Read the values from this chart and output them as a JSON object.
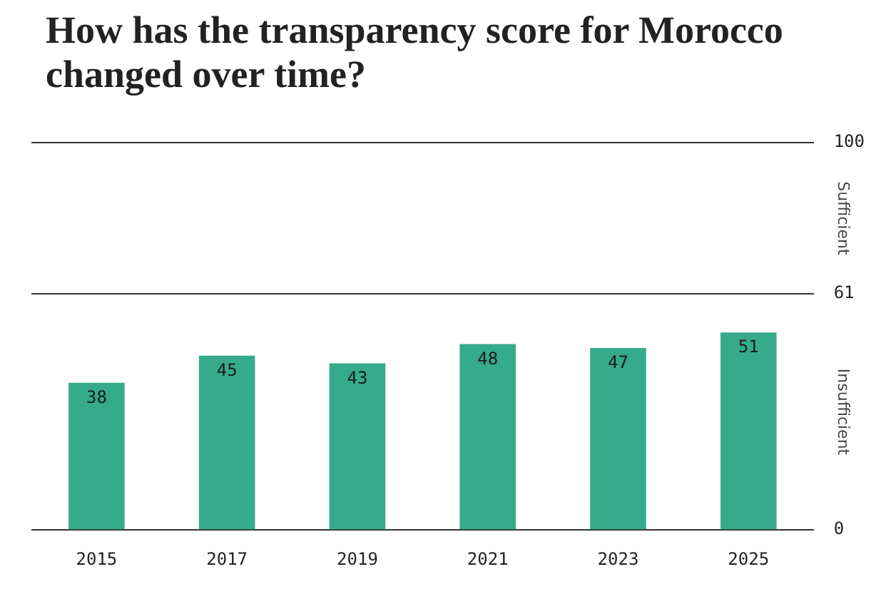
{
  "chart_data": {
    "type": "bar",
    "title": "How has the transparency score for Morocco changed over time?",
    "categories": [
      "2015",
      "2017",
      "2019",
      "2021",
      "2023",
      "2025"
    ],
    "values": [
      38,
      45,
      43,
      48,
      47,
      51
    ],
    "color": "#36ab8a",
    "ylim": [
      0,
      100
    ],
    "yticks": [
      0,
      61,
      100
    ],
    "grid": "y",
    "data_labels": true,
    "annotations": [
      "Sufficient",
      "Insufficient"
    ]
  }
}
